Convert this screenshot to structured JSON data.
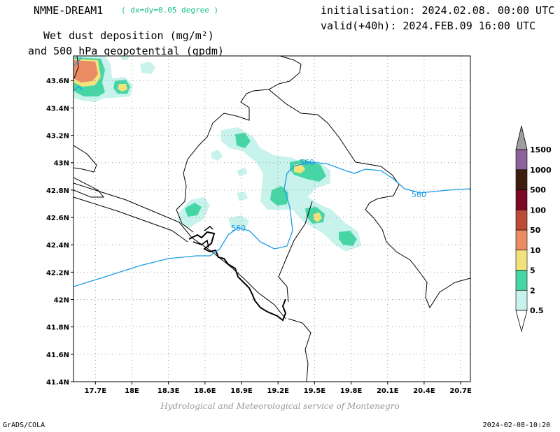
{
  "header": {
    "model": "NMME-DREAM1",
    "resolution": "( dx=dy=0.05 degree )",
    "init": "initialisation: 2024.02.08. 00:00 UTC",
    "valid": "valid(+40h): 2024.FEB.09 16:00 UTC",
    "title_line1": "Wet dust deposition (mg/m²)",
    "title_line2": "and 500 hPa geopotential (gpdm)"
  },
  "axes": {
    "lon_labels": [
      "17.7E",
      "18E",
      "18.3E",
      "18.6E",
      "18.9E",
      "19.2E",
      "19.5E",
      "19.8E",
      "20.1E",
      "20.4E",
      "20.7E"
    ],
    "lon_values": [
      17.7,
      18.0,
      18.3,
      18.6,
      18.9,
      19.2,
      19.5,
      19.8,
      20.1,
      20.4,
      20.7
    ],
    "lat_labels": [
      "41.4N",
      "41.6N",
      "41.8N",
      "42N",
      "42.2N",
      "42.4N",
      "42.6N",
      "42.8N",
      "43N",
      "43.2N",
      "43.4N",
      "43.6N"
    ],
    "lat_values": [
      41.4,
      41.6,
      41.8,
      42.0,
      42.2,
      42.4,
      42.6,
      42.8,
      43.0,
      43.2,
      43.4,
      43.6
    ],
    "lon_range": [
      17.52,
      20.78
    ],
    "lat_range": [
      41.4,
      43.78
    ],
    "grid": true
  },
  "colorbar": {
    "levels": [
      "0.5",
      "2",
      "5",
      "10",
      "50",
      "100",
      "500",
      "1000",
      "1500"
    ],
    "colors": [
      "#c8f2ec",
      "#46d6a6",
      "#f2e27c",
      "#ec8c64",
      "#bc4a38",
      "#7c0828",
      "#3e1c10",
      "#8c6298",
      "#9e9e9e"
    ]
  },
  "contour": {
    "label": "560",
    "color": "#1e9be6"
  },
  "footer": {
    "credit": "Hydrological and Meteorological service of Montenegro",
    "software": "GrADS/COLA",
    "timestamp": "2024-02-08-10:20"
  }
}
